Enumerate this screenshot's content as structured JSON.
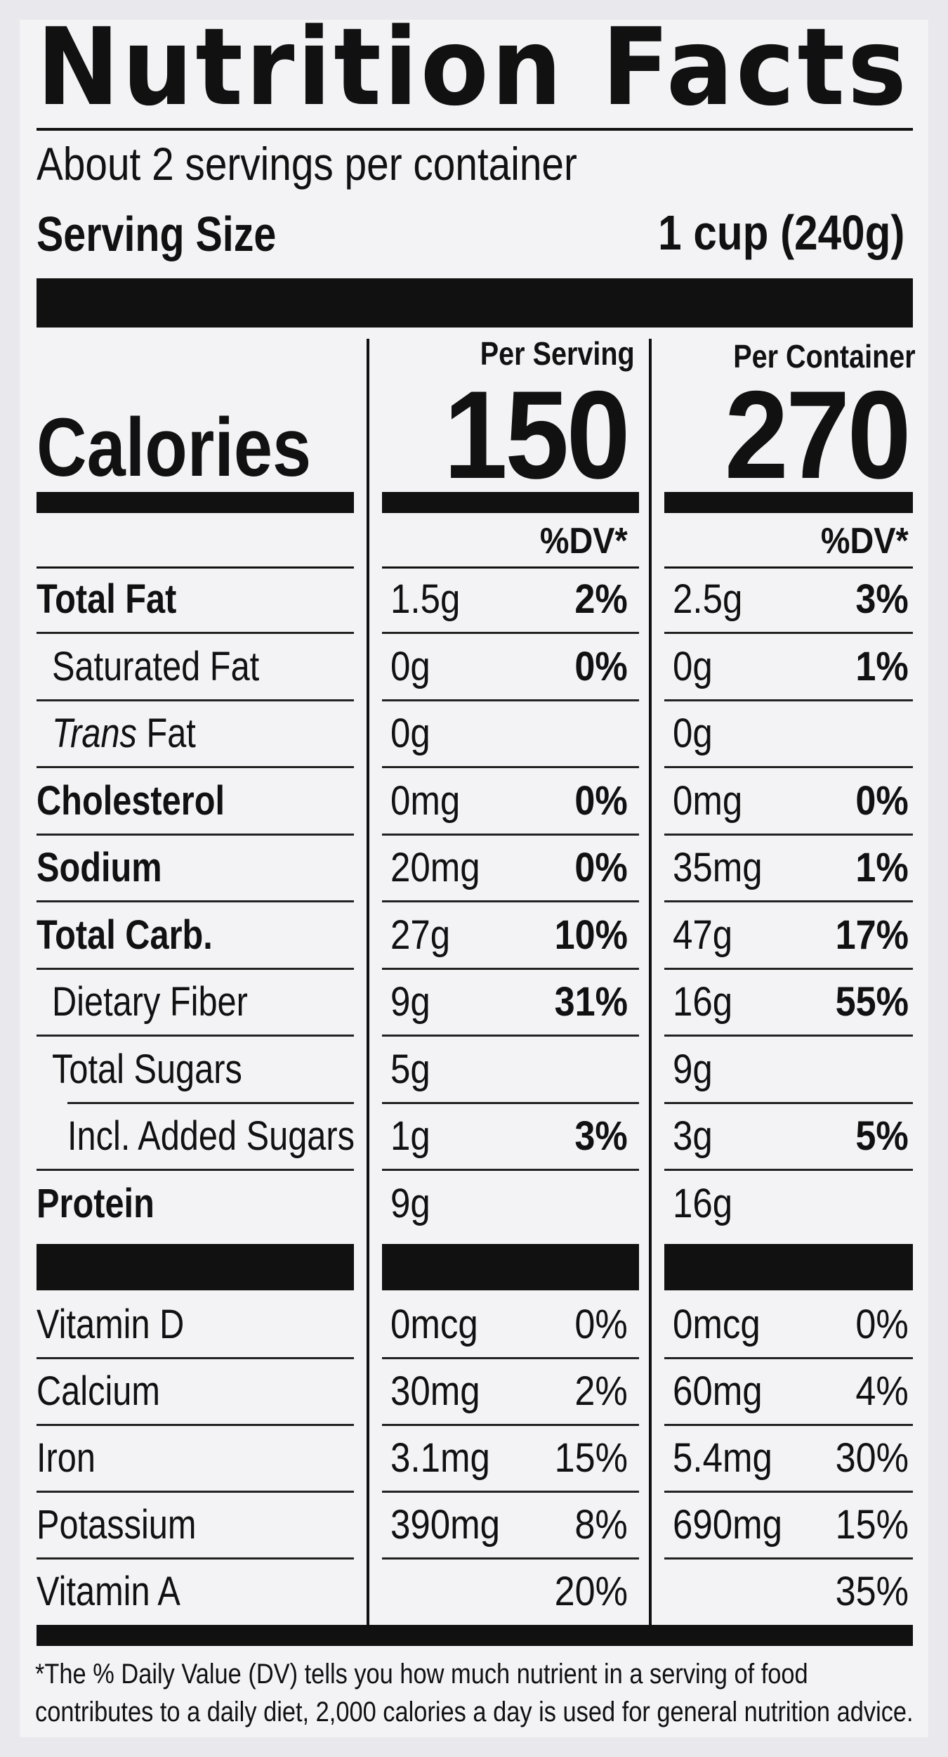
{
  "title": "Nutrition Facts",
  "servings_per_container": "About 2 servings per container",
  "serving_size": {
    "label": "Serving Size",
    "value": "1 cup (240g)"
  },
  "columns": {
    "per_serving": "Per Serving",
    "per_container": "Per Container"
  },
  "calories": {
    "label": "Calories",
    "per_serving": "150",
    "per_container": "270"
  },
  "dv_header": "%DV*",
  "nutrients": [
    {
      "name": "Total Fat",
      "bold": true,
      "indent": 0,
      "serving_amount": "1.5g",
      "serving_dv": "2%",
      "container_amount": "2.5g",
      "container_dv": "3%"
    },
    {
      "name": "Saturated Fat",
      "bold": false,
      "indent": 1,
      "serving_amount": "0g",
      "serving_dv": "0%",
      "container_amount": "0g",
      "container_dv": "1%"
    },
    {
      "name_italic": "Trans",
      "name": " Fat",
      "bold": false,
      "indent": 1,
      "serving_amount": "0g",
      "serving_dv": "",
      "container_amount": "0g",
      "container_dv": ""
    },
    {
      "name": "Cholesterol",
      "bold": true,
      "indent": 0,
      "serving_amount": "0mg",
      "serving_dv": "0%",
      "container_amount": "0mg",
      "container_dv": "0%"
    },
    {
      "name": "Sodium",
      "bold": true,
      "indent": 0,
      "serving_amount": "20mg",
      "serving_dv": "0%",
      "container_amount": "35mg",
      "container_dv": "1%"
    },
    {
      "name": "Total Carb.",
      "bold": true,
      "indent": 0,
      "serving_amount": "27g",
      "serving_dv": "10%",
      "container_amount": "47g",
      "container_dv": "17%"
    },
    {
      "name": "Dietary Fiber",
      "bold": false,
      "indent": 1,
      "serving_amount": "9g",
      "serving_dv": "31%",
      "container_amount": "16g",
      "container_dv": "55%"
    },
    {
      "name": "Total Sugars",
      "bold": false,
      "indent": 1,
      "serving_amount": "5g",
      "serving_dv": "",
      "container_amount": "9g",
      "container_dv": ""
    },
    {
      "name": "Incl. Added Sugars",
      "bold": false,
      "indent": 2,
      "serving_amount": "1g",
      "serving_dv": "3%",
      "container_amount": "3g",
      "container_dv": "5%"
    },
    {
      "name": "Protein",
      "bold": true,
      "indent": 0,
      "serving_amount": "9g",
      "serving_dv": "",
      "container_amount": "16g",
      "container_dv": ""
    }
  ],
  "vitamins": [
    {
      "name": "Vitamin D",
      "serving_amount": "0mcg",
      "serving_dv": "0%",
      "container_amount": "0mcg",
      "container_dv": "0%"
    },
    {
      "name": "Calcium",
      "serving_amount": "30mg",
      "serving_dv": "2%",
      "container_amount": "60mg",
      "container_dv": "4%"
    },
    {
      "name": "Iron",
      "serving_amount": "3.1mg",
      "serving_dv": "15%",
      "container_amount": "5.4mg",
      "container_dv": "30%"
    },
    {
      "name": "Potassium",
      "serving_amount": "390mg",
      "serving_dv": "8%",
      "container_amount": "690mg",
      "container_dv": "15%"
    },
    {
      "name": "Vitamin A",
      "serving_amount": "",
      "serving_dv": "20%",
      "container_amount": "",
      "container_dv": "35%"
    }
  ],
  "footnote": {
    "line1": "*The % Daily Value (DV) tells you how much nutrient in a serving of food",
    "line2": "contributes to a daily diet, 2,000 calories a day is used for general nutrition advice."
  }
}
